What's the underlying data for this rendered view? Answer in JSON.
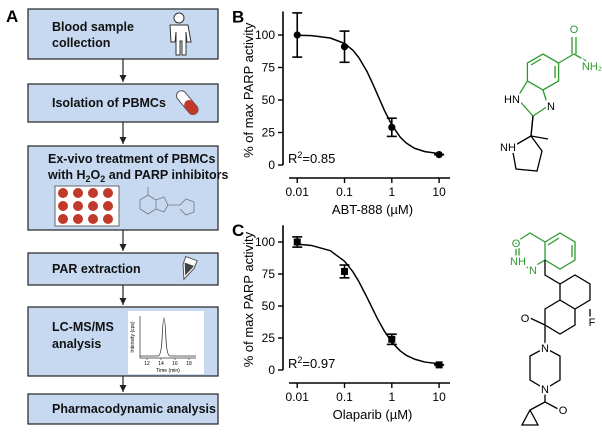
{
  "flowchart": {
    "label": "A",
    "steps": [
      {
        "lines": [
          "Blood sample",
          "collection"
        ]
      },
      {
        "lines": [
          "Isolation of PBMCs"
        ]
      },
      {
        "lines": [
          "Ex-vivo treatment of PBMCs"
        ],
        "line_parts": [
          "with H",
          "2",
          "O",
          "2",
          " and PARP inhibitors"
        ]
      },
      {
        "lines": [
          "PAR extraction"
        ]
      },
      {
        "lines": [
          "LC-MS/MS",
          "analysis"
        ]
      },
      {
        "lines": [
          "Pharmacodynamic analysis"
        ]
      }
    ]
  },
  "chromatogram": {
    "ylabel": "Intensity (cps)",
    "xlabel": "Time (min)",
    "xlim": [
      11,
      19
    ],
    "xticks": [
      12,
      14,
      16,
      18
    ]
  },
  "structures": {
    "abt888": [
      "O",
      "NH₂",
      "HN",
      "N",
      "NH"
    ],
    "olaparib": [
      "O",
      "NH",
      "N",
      "F",
      "O",
      "N",
      "N",
      "O"
    ]
  },
  "chart_data": [
    {
      "type": "scatter",
      "label": "B",
      "xlabel": "ABT-888 (µM)",
      "ylabel": "% of max PARP activity",
      "annotation": {
        "text": "R",
        "sup": "2",
        "rest": "=0.85"
      },
      "xscale": "log",
      "xlim": [
        0.005,
        17
      ],
      "ylim": [
        0,
        115
      ],
      "xticks": [
        0.01,
        0.1,
        1,
        10
      ],
      "yticks": [
        0,
        25,
        50,
        75,
        100
      ],
      "marker": "circle",
      "color": "#000000",
      "x": [
        0.01,
        0.1,
        1,
        10
      ],
      "values": [
        100,
        91,
        29,
        8
      ],
      "errors": [
        17,
        12,
        7,
        0
      ],
      "fit": {
        "x": [
          0.01,
          0.02,
          0.05,
          0.1,
          0.15,
          0.2,
          0.3,
          0.4,
          0.5,
          0.7,
          1,
          1.5,
          2,
          3,
          5,
          10
        ],
        "values": [
          99.8,
          99.5,
          97.7,
          93.5,
          88.3,
          82.7,
          71.8,
          62.1,
          54,
          41.9,
          30.8,
          21.5,
          17,
          12.9,
          10.3,
          8.8
        ]
      }
    },
    {
      "type": "scatter",
      "label": "C",
      "xlabel": "Olaparib (µM)",
      "ylabel": "% of max PARP activity",
      "annotation": {
        "text": "R",
        "sup": "2",
        "rest": "=0.97"
      },
      "xscale": "log",
      "xlim": [
        0.005,
        17
      ],
      "ylim": [
        0,
        110
      ],
      "xticks": [
        0.01,
        0.1,
        1,
        10
      ],
      "yticks": [
        0,
        25,
        50,
        75,
        100
      ],
      "marker": "square",
      "color": "#000000",
      "x": [
        0.01,
        0.1,
        1,
        10
      ],
      "values": [
        100,
        77,
        24,
        4
      ],
      "errors": [
        4,
        5,
        4,
        0
      ],
      "fit": {
        "x": [
          0.01,
          0.02,
          0.05,
          0.1,
          0.15,
          0.2,
          0.3,
          0.4,
          0.5,
          0.7,
          1,
          1.5,
          2,
          3,
          5,
          10
        ],
        "values": [
          98.3,
          97.3,
          93.2,
          85,
          76.8,
          69.2,
          56.6,
          47.1,
          39.9,
          30.2,
          21.8,
          15,
          11.6,
          8.5,
          6.2,
          4.9
        ]
      }
    }
  ]
}
